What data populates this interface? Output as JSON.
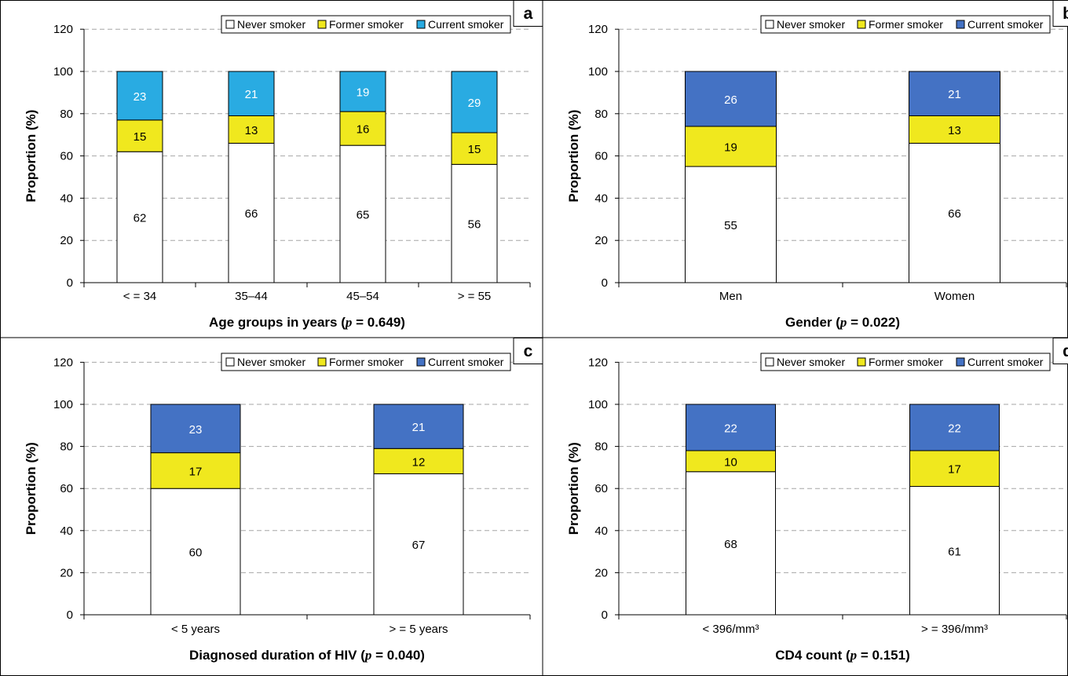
{
  "legend": {
    "never_label": "Never smoker",
    "former_label": "Former smoker",
    "current_label": "Current smoker"
  },
  "colors": {
    "never": "#ffffff",
    "former": "#f0e81e",
    "current_light": "#29abe2",
    "current_dark": "#4472c4"
  },
  "chart_data": [
    {
      "type": "bar",
      "stacked": true,
      "panel_label": "a",
      "ylabel": "Proportion (%)",
      "xlabel_prefix": "Age groups in years (",
      "xlabel_p": "p",
      "xlabel_suffix": " = 0.649)",
      "ylim": [
        0,
        120
      ],
      "yticks": [
        0,
        20,
        40,
        60,
        80,
        100,
        120
      ],
      "categories": [
        "< = 34",
        "35–44",
        "45–54",
        "> = 55"
      ],
      "series": [
        {
          "name": "Never smoker",
          "values": [
            62,
            66,
            65,
            56
          ]
        },
        {
          "name": "Former smoker",
          "values": [
            15,
            13,
            16,
            15
          ]
        },
        {
          "name": "Current smoker",
          "values": [
            23,
            21,
            19,
            29
          ]
        }
      ],
      "grid": "dashed-horizontal",
      "legend_position": "top-right",
      "current_color": "#29abe2"
    },
    {
      "type": "bar",
      "stacked": true,
      "panel_label": "b",
      "ylabel": "Proportion (%)",
      "xlabel_prefix": "Gender (",
      "xlabel_p": "p",
      "xlabel_suffix": " = 0.022)",
      "ylim": [
        0,
        120
      ],
      "yticks": [
        0,
        20,
        40,
        60,
        80,
        100,
        120
      ],
      "categories": [
        "Men",
        "Women"
      ],
      "series": [
        {
          "name": "Never smoker",
          "values": [
            55,
            66
          ]
        },
        {
          "name": "Former smoker",
          "values": [
            19,
            13
          ]
        },
        {
          "name": "Current smoker",
          "values": [
            26,
            21
          ]
        }
      ],
      "grid": "dashed-horizontal",
      "legend_position": "top-right",
      "current_color": "#4472c4"
    },
    {
      "type": "bar",
      "stacked": true,
      "panel_label": "c",
      "ylabel": "Proportion (%)",
      "xlabel_prefix": "Diagnosed duration of HIV (",
      "xlabel_p": "p",
      "xlabel_suffix": " = 0.040)",
      "ylim": [
        0,
        120
      ],
      "yticks": [
        0,
        20,
        40,
        60,
        80,
        100,
        120
      ],
      "categories": [
        "< 5 years",
        "> = 5 years"
      ],
      "series": [
        {
          "name": "Never smoker",
          "values": [
            60,
            67
          ]
        },
        {
          "name": "Former smoker",
          "values": [
            17,
            12
          ]
        },
        {
          "name": "Current smoker",
          "values": [
            23,
            21
          ]
        }
      ],
      "grid": "dashed-horizontal",
      "legend_position": "top-right",
      "current_color": "#4472c4"
    },
    {
      "type": "bar",
      "stacked": true,
      "panel_label": "d",
      "ylabel": "Proportion (%)",
      "xlabel_prefix": "CD4 count (",
      "xlabel_p": "p",
      "xlabel_suffix": " = 0.151)",
      "ylim": [
        0,
        120
      ],
      "yticks": [
        0,
        20,
        40,
        60,
        80,
        100,
        120
      ],
      "categories": [
        "< 396/mm³",
        "> = 396/mm³"
      ],
      "series": [
        {
          "name": "Never smoker",
          "values": [
            68,
            61
          ]
        },
        {
          "name": "Former smoker",
          "values": [
            10,
            17
          ]
        },
        {
          "name": "Current smoker",
          "values": [
            22,
            22
          ]
        }
      ],
      "grid": "dashed-horizontal",
      "legend_position": "top-right",
      "current_color": "#4472c4"
    }
  ]
}
